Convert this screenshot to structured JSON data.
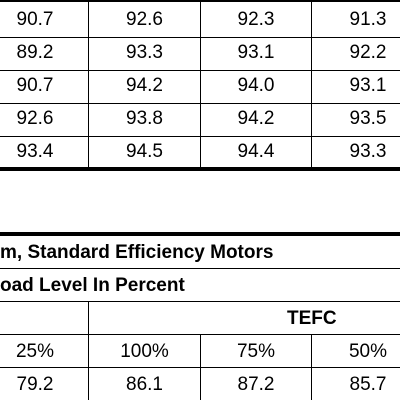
{
  "top_table": {
    "rows": [
      [
        "90.7",
        "92.6",
        "92.3",
        "91.3"
      ],
      [
        "89.2",
        "93.3",
        "93.1",
        "92.2"
      ],
      [
        "90.7",
        "94.2",
        "94.0",
        "93.1"
      ],
      [
        "92.6",
        "93.8",
        "94.2",
        "93.5"
      ],
      [
        "93.4",
        "94.5",
        "94.4",
        "93.3"
      ]
    ]
  },
  "bottom_table": {
    "title": "m, Standard Efficiency Motors",
    "subtitle": "oad Level In Percent",
    "group_label": "TEFC",
    "headers": [
      "25%",
      "100%",
      "75%",
      "50%"
    ],
    "rows": [
      [
        "79.2",
        "86.1",
        "87.2",
        "85.7"
      ]
    ]
  }
}
